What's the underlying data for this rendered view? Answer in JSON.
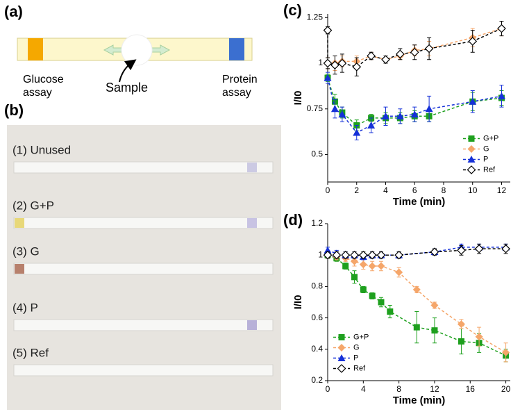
{
  "diagram": {
    "label": "(a)",
    "left_label": [
      "Glucose",
      "assay"
    ],
    "center_label": "Sample",
    "right_label": [
      "Protein",
      "assay"
    ]
  },
  "photo": {
    "label": "(b)",
    "strips": [
      "(1) Unused",
      "(2) G+P",
      "(3) G",
      "(4) P",
      "(5) Ref"
    ]
  },
  "chart_data": [
    {
      "type": "line",
      "label": "(c)",
      "x_label": "Time (min)",
      "y_label": "I/I0",
      "xlim": [
        0,
        12.6
      ],
      "xticks": [
        0,
        2,
        4,
        6,
        8,
        10,
        12
      ],
      "ylim": [
        0.35,
        1.27
      ],
      "yticks": [
        0.5,
        0.75,
        1,
        1.25
      ],
      "legend": "lower right",
      "series": [
        {
          "name": "G+P",
          "color": "#1ea01e",
          "marker": "square",
          "x": [
            0,
            0.5,
            1,
            2,
            3,
            4,
            5,
            6,
            7,
            10,
            12
          ],
          "values": [
            0.92,
            0.79,
            0.73,
            0.66,
            0.7,
            0.7,
            0.7,
            0.71,
            0.71,
            0.79,
            0.81
          ],
          "errors": [
            0.02,
            0.04,
            0.03,
            0.03,
            0.02,
            0.03,
            0.03,
            0.03,
            0.03,
            0.05,
            0.04
          ]
        },
        {
          "name": "G",
          "color": "#f5a66a",
          "marker": "diamond",
          "x": [
            0,
            0.5,
            1,
            2,
            3,
            4,
            5,
            6,
            7,
            10,
            12
          ],
          "values": [
            1.0,
            1.0,
            1.01,
            1.01,
            1.04,
            1.02,
            1.04,
            1.07,
            1.08,
            1.14,
            1.19
          ],
          "errors": [
            0.03,
            0.04,
            0.03,
            0.03,
            0.02,
            0.02,
            0.02,
            0.03,
            0.04,
            0.05,
            0.04
          ]
        },
        {
          "name": "P",
          "color": "#1530d8",
          "marker": "triangle",
          "x": [
            0,
            0.5,
            1,
            2,
            3,
            4,
            5,
            6,
            7,
            10,
            12
          ],
          "values": [
            0.92,
            0.75,
            0.72,
            0.62,
            0.66,
            0.71,
            0.71,
            0.72,
            0.75,
            0.79,
            0.82
          ],
          "errors": [
            0.03,
            0.05,
            0.04,
            0.04,
            0.04,
            0.05,
            0.04,
            0.04,
            0.07,
            0.06,
            0.06
          ]
        },
        {
          "name": "Ref",
          "color": "#000000",
          "marker": "diamond-open",
          "x": [
            0,
            0,
            0.5,
            1,
            2,
            3,
            4,
            5,
            6,
            7,
            10,
            12
          ],
          "values": [
            1.18,
            1.0,
            0.99,
            1.0,
            0.98,
            1.04,
            1.02,
            1.05,
            1.06,
            1.08,
            1.12,
            1.19
          ],
          "errors": [
            0.02,
            0.03,
            0.05,
            0.05,
            0.05,
            0.02,
            0.02,
            0.03,
            0.04,
            0.06,
            0.06,
            0.04
          ]
        }
      ]
    },
    {
      "type": "line",
      "label": "(d)",
      "x_label": "Time (min)",
      "y_label": "I/I0",
      "xlim": [
        0,
        20.5
      ],
      "xticks": [
        0,
        4,
        8,
        12,
        16,
        20
      ],
      "ylim": [
        0.2,
        1.2
      ],
      "yticks": [
        0.2,
        0.4,
        0.6,
        0.8,
        1,
        1.2
      ],
      "legend": "lower left",
      "series": [
        {
          "name": "G+P",
          "color": "#1ea01e",
          "marker": "square",
          "x": [
            0,
            1,
            2,
            3,
            4,
            5,
            6,
            7,
            10,
            12,
            15,
            17,
            20
          ],
          "values": [
            1.0,
            0.98,
            0.93,
            0.86,
            0.78,
            0.74,
            0.7,
            0.64,
            0.54,
            0.52,
            0.45,
            0.44,
            0.36
          ],
          "errors": [
            0.02,
            0.02,
            0.02,
            0.04,
            0.02,
            0.02,
            0.03,
            0.04,
            0.1,
            0.08,
            0.08,
            0.06,
            0.04
          ]
        },
        {
          "name": "G",
          "color": "#f5a66a",
          "marker": "diamond",
          "x": [
            0,
            1,
            2,
            3,
            4,
            5,
            6,
            8,
            10,
            12,
            15,
            17,
            20
          ],
          "values": [
            1.0,
            0.99,
            0.98,
            0.96,
            0.94,
            0.93,
            0.93,
            0.89,
            0.78,
            0.68,
            0.56,
            0.48,
            0.38
          ],
          "errors": [
            0.02,
            0.02,
            0.02,
            0.03,
            0.03,
            0.03,
            0.03,
            0.03,
            0.02,
            0.02,
            0.03,
            0.06,
            0.06
          ]
        },
        {
          "name": "P",
          "color": "#1530d8",
          "marker": "triangle",
          "x": [
            0,
            1,
            2,
            3,
            4,
            5,
            6,
            8,
            12,
            15,
            17,
            20
          ],
          "values": [
            1.03,
            1.01,
            1.0,
            1.0,
            0.99,
            1.0,
            1.0,
            1.0,
            1.02,
            1.05,
            1.05,
            1.05
          ],
          "errors": [
            0.02,
            0.02,
            0.02,
            0.02,
            0.02,
            0.02,
            0.02,
            0.02,
            0.02,
            0.02,
            0.02,
            0.02
          ]
        },
        {
          "name": "Ref",
          "color": "#000000",
          "marker": "diamond-open",
          "x": [
            0,
            1,
            2,
            3,
            4,
            5,
            6,
            8,
            12,
            15,
            17,
            20
          ],
          "values": [
            1.0,
            1.0,
            1.0,
            1.0,
            1.0,
            1.0,
            1.0,
            1.0,
            1.02,
            1.03,
            1.04,
            1.04
          ],
          "errors": [
            0.02,
            0.02,
            0.02,
            0.02,
            0.02,
            0.02,
            0.02,
            0.02,
            0.02,
            0.03,
            0.03,
            0.03
          ]
        }
      ]
    }
  ]
}
